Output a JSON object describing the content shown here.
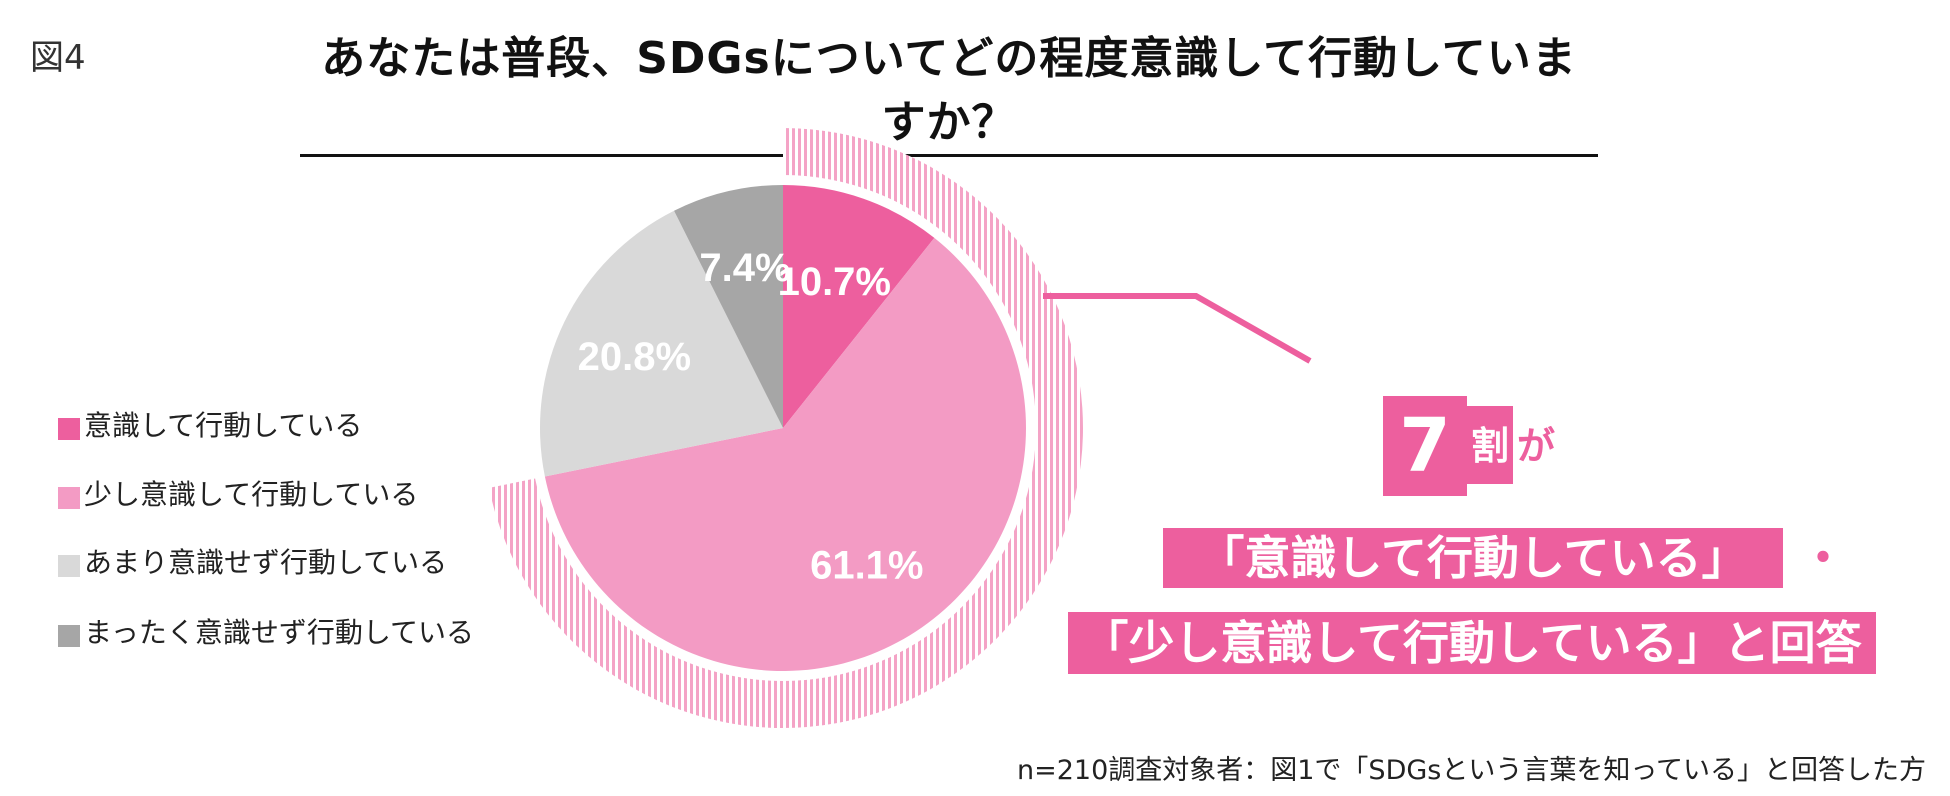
{
  "figure_label": "図4",
  "title": "あなたは普段、SDGsについてどの程度意識して行動していますか？",
  "chart_data": {
    "type": "pie",
    "title": "あなたは普段、SDGsについてどの程度意識して行動していますか？",
    "categories": [
      "意識して行動している",
      "少し意識して行動している",
      "あまり意識せず行動している",
      "まったく意識せず行動している"
    ],
    "values": [
      10.7,
      61.1,
      20.8,
      7.4
    ],
    "value_labels": [
      "10.7%",
      "61.1%",
      "20.8%",
      "7.4%"
    ],
    "colors": [
      "#ed5f9e",
      "#f39bc4",
      "#d9d9d9",
      "#a6a6a6"
    ],
    "start_angle": "12 o'clock",
    "direction": "clockwise",
    "legend_position": "left"
  },
  "legend": [
    {
      "label": "意識して行動している",
      "color": "#ed5f9e"
    },
    {
      "label": "少し意識して行動している",
      "color": "#f39bc4"
    },
    {
      "label": "あまり意識せず行動している",
      "color": "#d9d9d9"
    },
    {
      "label": "まったく意識せず行動している",
      "color": "#a6a6a6"
    }
  ],
  "callout": {
    "big_number": "7",
    "big_suffix_1": "割",
    "big_suffix_2": "が",
    "line1": "「意識して行動している」",
    "line1_tail": "・",
    "line2": "「少し意識して行動している」と回答"
  },
  "footnote": "n=210調査対象者：図1で「SDGsという言葉を知っている」と回答した方",
  "accent_color": "#ed5f9e"
}
